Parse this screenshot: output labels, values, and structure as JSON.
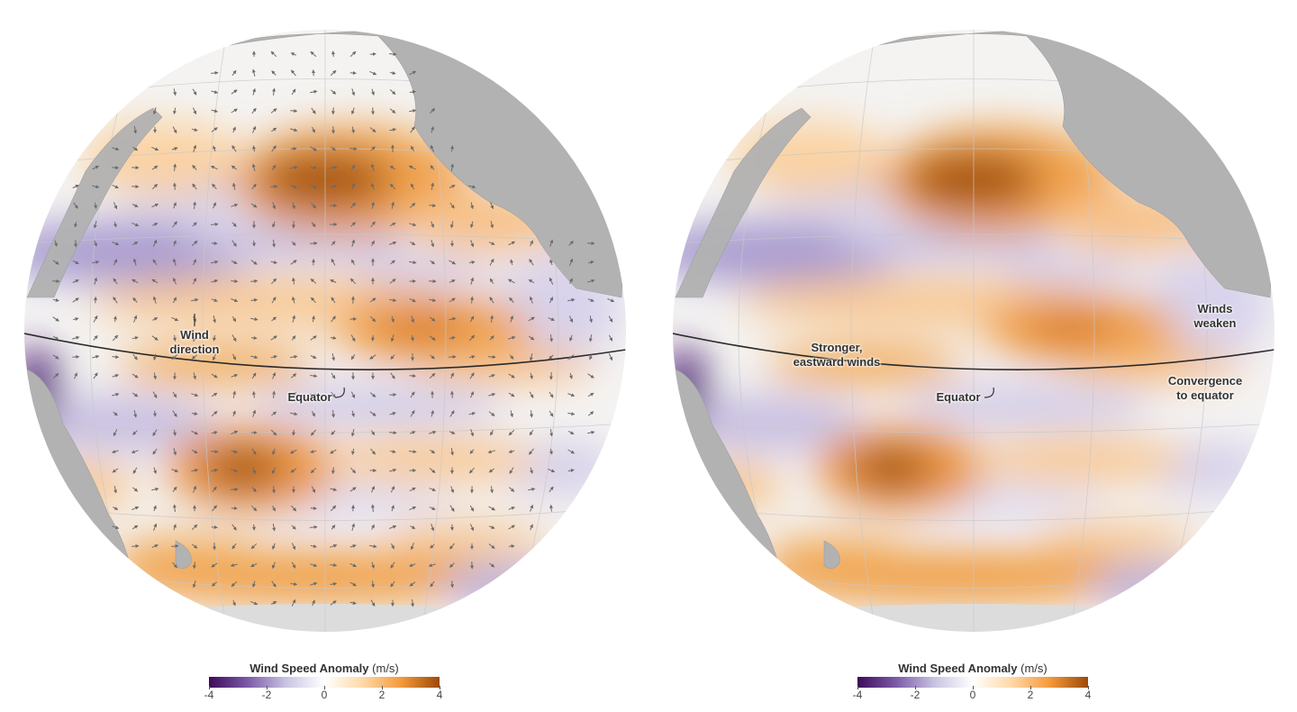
{
  "maps": [
    {
      "id": "left",
      "shows_wind_vectors": true,
      "labels": {
        "wind_direction_line1": "Wind",
        "wind_direction_line2": "direction",
        "equator": "Equator"
      }
    },
    {
      "id": "right",
      "shows_wind_vectors": false,
      "labels": {
        "stronger_line1": "Stronger,",
        "stronger_line2": "eastward winds",
        "equator": "Equator",
        "winds_weaken_line1": "Winds",
        "winds_weaken_line2": "weaken",
        "convergence_line1": "Convergence",
        "convergence_line2": "to equator"
      }
    }
  ],
  "legend": {
    "title": "Wind Speed Anomaly",
    "unit": "(m/s)",
    "ticks": [
      "-4",
      "-2",
      "0",
      "2",
      "4"
    ],
    "colors": [
      "#3d0b5a",
      "#7b5aa8",
      "#c9c3e2",
      "#ffffff",
      "#fdd9a8",
      "#f59a3c",
      "#9c4a08"
    ]
  },
  "colors": {
    "land": "#b2b2b2",
    "ocean_neutral": "#f4f3f2",
    "positive_anomaly": "#e58a2c",
    "strong_positive": "#8f4a0c",
    "negative_anomaly": "#a896cf",
    "strong_negative": "#4a1a70"
  }
}
